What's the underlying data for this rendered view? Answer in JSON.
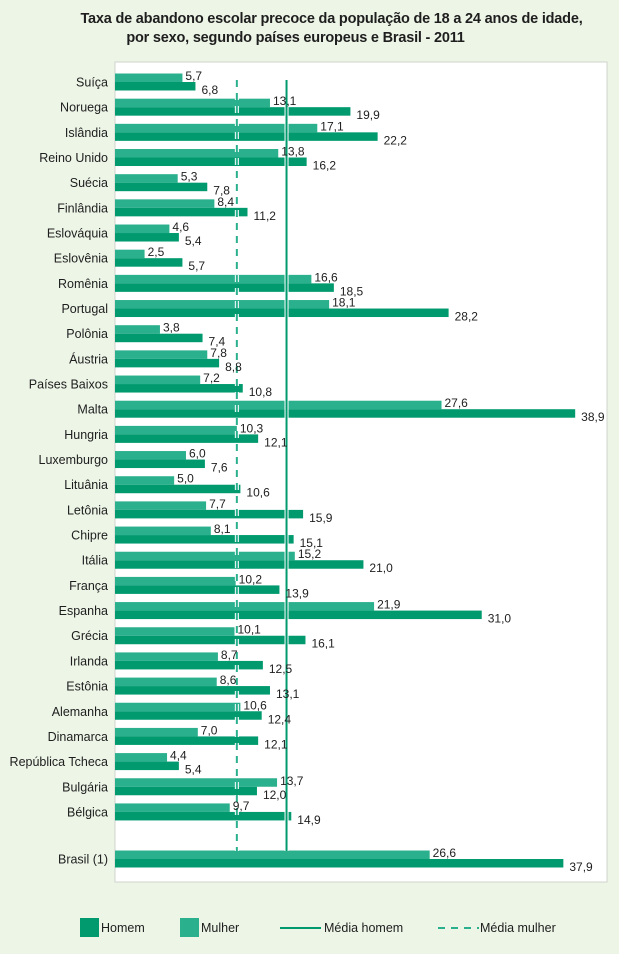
{
  "chart_data": {
    "type": "bar",
    "orientation": "horizontal",
    "title": "Taxa de abandono escolar precoce da população de 18 a 24 anos de idade,",
    "subtitle": "por sexo, segundo países europeus e Brasil - 2011",
    "xlabel": "",
    "ylabel": "",
    "xlim": [
      0,
      41
    ],
    "grid": false,
    "legend_position": "bottom",
    "categories": [
      "Suíça",
      "Noruega",
      "Islândia",
      "Reino Unido",
      "Suécia",
      "Finlândia",
      "Eslováquia",
      "Eslovênia",
      "Romênia",
      "Portugal",
      "Polônia",
      "Áustria",
      "Países Baixos",
      "Malta",
      "Hungria",
      "Luxemburgo",
      "Lituânia",
      "Letônia",
      "Chipre",
      "Itália",
      "França",
      "Espanha",
      "Grécia",
      "Irlanda",
      "Estônia",
      "Alemanha",
      "Dinamarca",
      "República Tcheca",
      "Bulgária",
      "Bélgica",
      "Brasil (1)"
    ],
    "series": [
      {
        "name": "Mulher",
        "color": "#2bb08e",
        "values": [
          5.7,
          13.1,
          17.1,
          13.8,
          5.3,
          8.4,
          4.6,
          2.5,
          16.6,
          18.1,
          3.8,
          7.8,
          7.2,
          27.6,
          10.3,
          6.0,
          5.0,
          7.7,
          8.1,
          15.2,
          10.2,
          21.9,
          10.1,
          8.7,
          8.6,
          10.6,
          7.0,
          4.4,
          13.7,
          9.7,
          26.6
        ],
        "labels": [
          "5,7",
          "13,1",
          "17,1",
          "13,8",
          "5,3",
          "8,4",
          "4,6",
          "2,5",
          "16,6",
          "18,1",
          "3,8",
          "7,8",
          "7,2",
          "27,6",
          "10,3",
          "6,0",
          "5,0",
          "7,7",
          "8,1",
          "15,2",
          "10,2",
          "21,9",
          "10,1",
          "8,7",
          "8,6",
          "10,6",
          "7,0",
          "4,4",
          "13,7",
          "9,7",
          "26,6"
        ]
      },
      {
        "name": "Homem",
        "color": "#009a6e",
        "values": [
          6.8,
          19.9,
          22.2,
          16.2,
          7.8,
          11.2,
          5.4,
          5.7,
          18.5,
          28.2,
          7.4,
          8.8,
          10.8,
          38.9,
          12.1,
          7.6,
          10.6,
          15.9,
          15.1,
          21.0,
          13.9,
          31.0,
          16.1,
          12.5,
          13.1,
          12.4,
          12.1,
          5.4,
          12.0,
          14.9,
          37.9
        ],
        "labels": [
          "6,8",
          "19,9",
          "22,2",
          "16,2",
          "7,8",
          "11,2",
          "5,4",
          "5,7",
          "18,5",
          "28,2",
          "7,4",
          "8,8",
          "10,8",
          "38,9",
          "12,1",
          "7,6",
          "10,6",
          "15,9",
          "15,1",
          "21,0",
          "13,9",
          "31,0",
          "16,1",
          "12,5",
          "13,1",
          "12,4",
          "12,1",
          "5,4",
          "12,0",
          "14,9",
          "37,9"
        ]
      }
    ],
    "reference_lines": [
      {
        "name": "Média homem",
        "value": 14.5,
        "style": "solid",
        "color": "#009a6e"
      },
      {
        "name": "Média mulher",
        "value": 10.3,
        "style": "dashed",
        "color": "#2bb08e"
      }
    ],
    "legend": [
      {
        "label": "Homem",
        "kind": "swatch",
        "color": "#009a6e"
      },
      {
        "label": "Mulher",
        "kind": "swatch",
        "color": "#2bb08e"
      },
      {
        "label": "Média homem",
        "kind": "solid-line",
        "color": "#009a6e"
      },
      {
        "label": "Média mulher",
        "kind": "dashed-line",
        "color": "#2bb08e"
      }
    ]
  }
}
